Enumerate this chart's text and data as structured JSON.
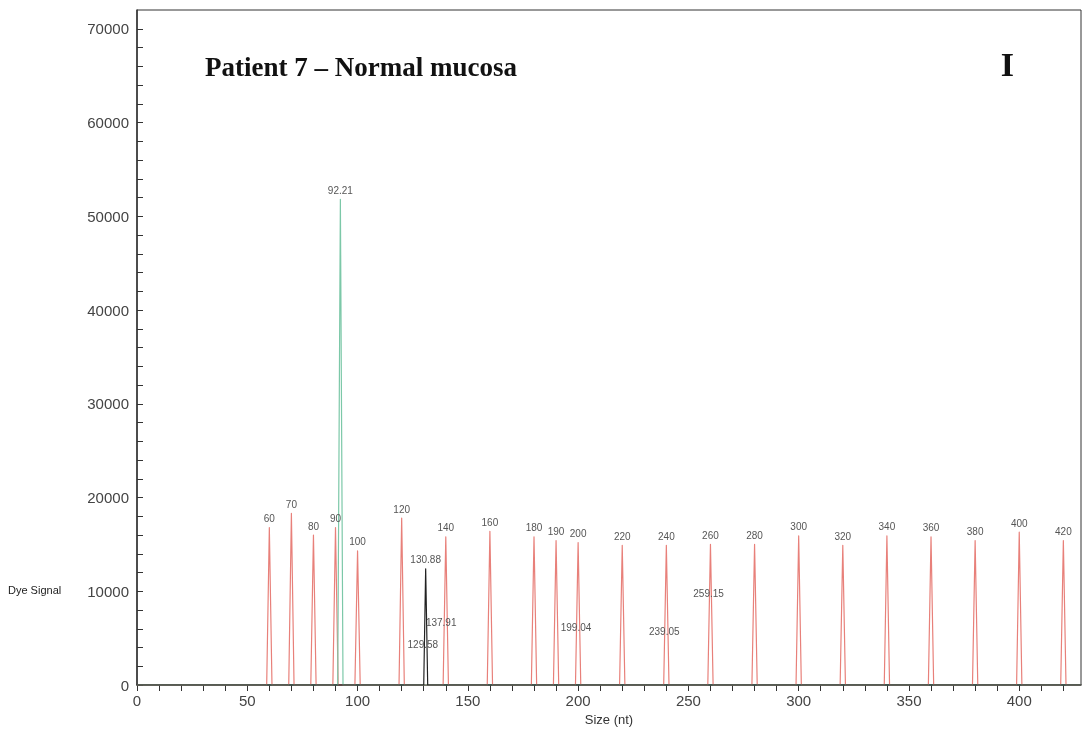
{
  "chart_data": {
    "type": "line",
    "title": "Patient 7 – Normal mucosa",
    "xlabel": "Size (nt)",
    "ylabel": "Dye Signal",
    "xlim": [
      0,
      428
    ],
    "ylim": [
      0,
      72000
    ],
    "xticks": [
      0,
      {
        "value": 10,
        "label": null
      },
      {
        "value": 20,
        "label": null
      },
      {
        "value": 30,
        "label": null
      },
      {
        "value": 40,
        "label": null
      },
      50,
      {
        "value": 60,
        "label": null
      },
      {
        "value": 70,
        "label": null
      },
      {
        "value": 80,
        "label": null
      },
      {
        "value": 90,
        "label": null
      },
      100,
      {
        "value": 110,
        "label": null
      },
      {
        "value": 120,
        "label": null
      },
      {
        "value": 130,
        "label": null
      },
      {
        "value": 140,
        "label": null
      },
      150,
      {
        "value": 160,
        "label": null
      },
      {
        "value": 170,
        "label": null
      },
      {
        "value": 180,
        "label": null
      },
      {
        "value": 190,
        "label": null
      },
      200,
      {
        "value": 210,
        "label": null
      },
      {
        "value": 220,
        "label": null
      },
      {
        "value": 230,
        "label": null
      },
      {
        "value": 240,
        "label": null
      },
      250,
      {
        "value": 260,
        "label": null
      },
      {
        "value": 270,
        "label": null
      },
      {
        "value": 280,
        "label": null
      },
      {
        "value": 290,
        "label": null
      },
      300,
      {
        "value": 310,
        "label": null
      },
      {
        "value": 320,
        "label": null
      },
      {
        "value": 330,
        "label": null
      },
      {
        "value": 340,
        "label": null
      },
      350,
      {
        "value": 360,
        "label": null
      },
      {
        "value": 370,
        "label": null
      },
      {
        "value": 380,
        "label": null
      },
      {
        "value": 390,
        "label": null
      },
      400,
      {
        "value": 410,
        "label": null
      },
      {
        "value": 420,
        "label": null
      }
    ],
    "yticks": [
      0,
      {
        "value": 2000,
        "label": null
      },
      {
        "value": 4000,
        "label": null
      },
      {
        "value": 6000,
        "label": null
      },
      {
        "value": 8000,
        "label": null
      },
      10000,
      {
        "value": 12000,
        "label": null
      },
      {
        "value": 14000,
        "label": null
      },
      {
        "value": 16000,
        "label": null
      },
      {
        "value": 18000,
        "label": null
      },
      20000,
      {
        "value": 22000,
        "label": null
      },
      {
        "value": 24000,
        "label": null
      },
      {
        "value": 26000,
        "label": null
      },
      {
        "value": 28000,
        "label": null
      },
      30000,
      {
        "value": 32000,
        "label": null
      },
      {
        "value": 34000,
        "label": null
      },
      {
        "value": 36000,
        "label": null
      },
      {
        "value": 38000,
        "label": null
      },
      40000,
      {
        "value": 42000,
        "label": null
      },
      {
        "value": 44000,
        "label": null
      },
      {
        "value": 46000,
        "label": null
      },
      {
        "value": 48000,
        "label": null
      },
      50000,
      {
        "value": 52000,
        "label": null
      },
      {
        "value": 54000,
        "label": null
      },
      {
        "value": 56000,
        "label": null
      },
      {
        "value": 58000,
        "label": null
      },
      60000,
      {
        "value": 62000,
        "label": null
      },
      {
        "value": 64000,
        "label": null
      },
      {
        "value": 66000,
        "label": null
      },
      {
        "value": 68000,
        "label": null
      },
      70000
    ],
    "grid": false,
    "marker": "none",
    "line_style": "solid",
    "series": [
      {
        "color": "#e8807a",
        "x": [
          0,
          58.8,
          60,
          61.2,
          68.8,
          70,
          71.2,
          78.8,
          80,
          81.2,
          88.8,
          90,
          91.2,
          98.8,
          100,
          101.2,
          118.8,
          120,
          121.2,
          138.8,
          140,
          141.2,
          158.8,
          160,
          161.2,
          178.8,
          180,
          181.2,
          188.8,
          190,
          191.2,
          198.8,
          200,
          201.2,
          218.8,
          220,
          221.2,
          238.8,
          240,
          241.2,
          258.8,
          260,
          261.2,
          278.8,
          280,
          281.2,
          298.8,
          300,
          301.2,
          318.8,
          320,
          321.2,
          338.8,
          340,
          341.2,
          358.8,
          360,
          361.2,
          378.8,
          380,
          381.2,
          398.8,
          400,
          401.2,
          418.8,
          420,
          421.2,
          428
        ],
        "values": [
          0,
          0,
          16800,
          0,
          0,
          18300,
          0,
          0,
          16000,
          0,
          0,
          16800,
          0,
          0,
          14300,
          0,
          0,
          17800,
          0,
          0,
          15800,
          0,
          0,
          16400,
          0,
          0,
          15800,
          0,
          0,
          15400,
          0,
          0,
          15200,
          0,
          0,
          14900,
          0,
          0,
          14900,
          0,
          0,
          15000,
          0,
          0,
          15000,
          0,
          0,
          15900,
          0,
          0,
          14900,
          0,
          0,
          15900,
          0,
          0,
          15800,
          0,
          0,
          15400,
          0,
          0,
          16300,
          0,
          0,
          15400,
          0,
          0
        ]
      },
      {
        "color": "#7cc8a8",
        "x": [
          0,
          91,
          92.21,
          93.4,
          428
        ],
        "values": [
          0,
          0,
          51800,
          0,
          0
        ]
      },
      {
        "color": "#222222",
        "x": [
          0,
          130,
          130.88,
          131.8,
          428
        ],
        "values": [
          0,
          0,
          12400,
          0,
          0
        ]
      }
    ],
    "annotations": [
      "I",
      {
        "text": "60",
        "x": 60,
        "y": 16800
      },
      {
        "text": "70",
        "x": 70,
        "y": 18300
      },
      {
        "text": "80",
        "x": 80,
        "y": 16000
      },
      {
        "text": "90",
        "x": 90,
        "y": 16800
      },
      {
        "text": "100",
        "x": 100,
        "y": 14300
      },
      {
        "text": "92.21",
        "x": 92.21,
        "y": 51800
      },
      {
        "text": "120",
        "x": 120,
        "y": 17800
      },
      {
        "text": "130.88",
        "x": 130.88,
        "y": 12400
      },
      {
        "text": "140",
        "x": 140,
        "y": 15800
      },
      {
        "text": "160",
        "x": 160,
        "y": 16400
      },
      {
        "text": "180",
        "x": 180,
        "y": 15800
      },
      {
        "text": "190",
        "x": 190,
        "y": 15400
      },
      {
        "text": "200",
        "x": 200,
        "y": 15200
      },
      {
        "text": "220",
        "x": 220,
        "y": 14900
      },
      {
        "text": "240",
        "x": 240,
        "y": 14900
      },
      {
        "text": "260",
        "x": 260,
        "y": 15000
      },
      {
        "text": "280",
        "x": 280,
        "y": 15000
      },
      {
        "text": "300",
        "x": 300,
        "y": 15900
      },
      {
        "text": "320",
        "x": 320,
        "y": 14900
      },
      {
        "text": "340",
        "x": 340,
        "y": 15900
      },
      {
        "text": "360",
        "x": 360,
        "y": 15800
      },
      {
        "text": "380",
        "x": 380,
        "y": 15400
      },
      {
        "text": "400",
        "x": 400,
        "y": 16300
      },
      {
        "text": "420",
        "x": 420,
        "y": 15400
      },
      {
        "text": "129.58",
        "x": 129.58,
        "y": 3400
      },
      {
        "text": "137.91",
        "x": 137.91,
        "y": 5700
      },
      {
        "text": "199.04",
        "x": 199.04,
        "y": 5200
      },
      {
        "text": "239.05",
        "x": 239.05,
        "y": 4800
      },
      {
        "text": "259.15",
        "x": 259.15,
        "y": 8800
      }
    ]
  }
}
